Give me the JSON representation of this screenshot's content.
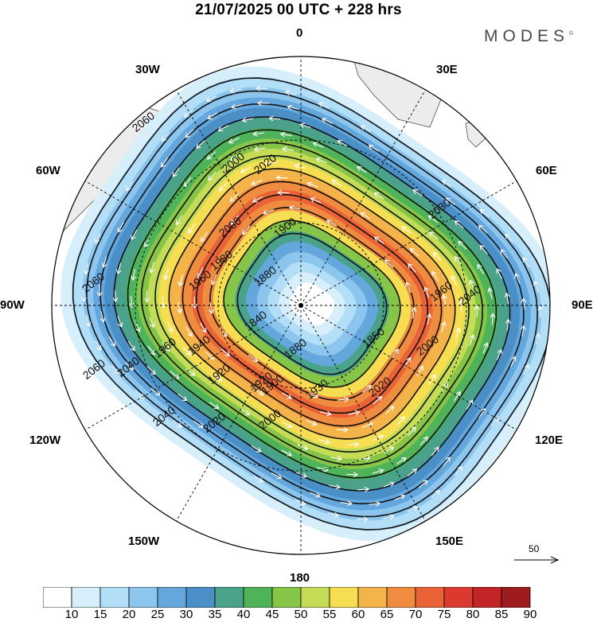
{
  "title": "21/07/2025  00 UTC  + 228 hrs",
  "brand": "MODES",
  "brand_mark": "©",
  "longitude_labels": {
    "lon_0": "0",
    "lon_30e": "30E",
    "lon_60e": "60E",
    "lon_90e": "90E",
    "lon_120e": "120E",
    "lon_150e": "150E",
    "lon_180": "180",
    "lon_150w": "150W",
    "lon_120w": "120W",
    "lon_90w": "90W",
    "lon_60w": "60W",
    "lon_30w": "30W"
  },
  "reference_vector": {
    "label": "50",
    "value": 50
  },
  "colorbar": {
    "labels": [
      "10",
      "15",
      "20",
      "25",
      "30",
      "35",
      "40",
      "45",
      "50",
      "55",
      "60",
      "65",
      "70",
      "75",
      "80",
      "85",
      "90"
    ],
    "colors": [
      "#ffffff",
      "#d7eefb",
      "#b3def7",
      "#8cc6ee",
      "#64a7dd",
      "#4a8fc6",
      "#4aa28a",
      "#4fb35a",
      "#87c548",
      "#c4dc56",
      "#f7dd52",
      "#f4b449",
      "#f08c3f",
      "#ea6336",
      "#dc3a2e",
      "#c32526",
      "#9e1b1e"
    ]
  },
  "contour_labels": [
    "2060",
    "2060",
    "2060",
    "2040",
    "2040",
    "2040",
    "2030",
    "2020",
    "2020",
    "2020",
    "2000",
    "2000",
    "2000",
    "2000",
    "1980",
    "1960",
    "1960",
    "1960",
    "1940",
    "1930",
    "1920",
    "1920",
    "1900",
    "1900",
    "1880",
    "1880",
    "1850",
    "1840"
  ]
}
